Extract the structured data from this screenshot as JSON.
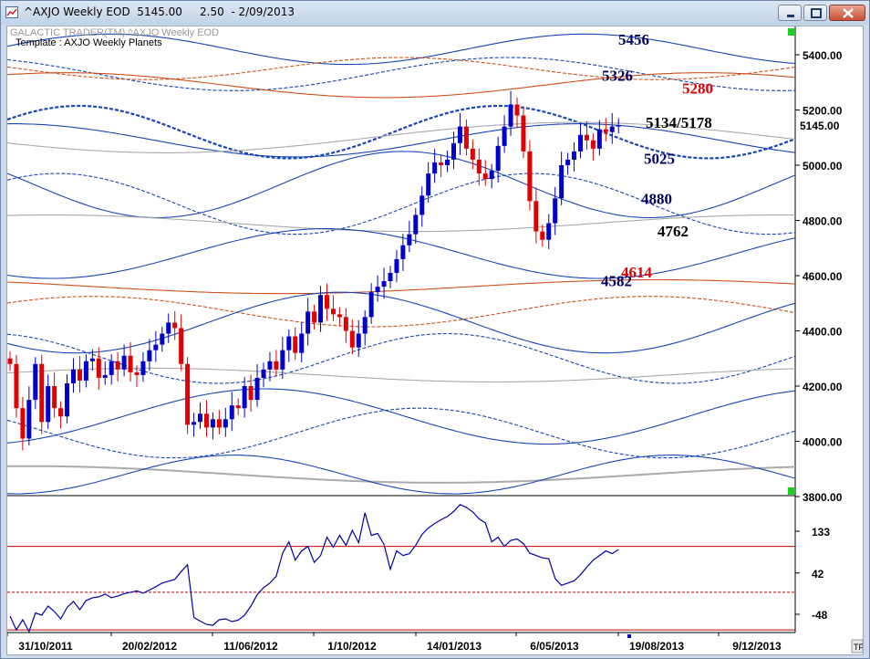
{
  "window": {
    "title": "^AXJO Weekly EOD  5145.00     2.50  - 2/09/2013",
    "chrome_color": "#cfdbea",
    "close_color": "#c74e34"
  },
  "chart": {
    "header_text": "GALACTIC TRADER(TM)     ^AXJO Weekly EOD",
    "template_text": "Template : AXJO Weekly Planets",
    "last_price_label": "5145.00",
    "corner_label": "TF"
  },
  "chart_data": [
    {
      "type": "candlestick",
      "ylim": [
        3800,
        5500
      ],
      "y_ticks": [
        "5400.00",
        "5200.00",
        "5000.00",
        "4800.00",
        "4600.00",
        "4400.00",
        "4200.00",
        "4000.00",
        "3800.00"
      ],
      "y_tick_values": [
        5400,
        5200,
        5000,
        4800,
        4600,
        4400,
        4200,
        4000,
        3800
      ],
      "x_tick_labels": [
        "31/10/2011",
        "20/02/2012",
        "11/06/2012",
        "1/10/2012",
        "14/01/2013",
        "6/05/2013",
        "19/08/2013",
        "9/12/2013"
      ],
      "last_close": 5145.0,
      "level_labels": [
        {
          "text": "5456",
          "value": 5456,
          "color": "#000060"
        },
        {
          "text": "5326",
          "value": 5326,
          "color": "#000060"
        },
        {
          "text": "5280",
          "value": 5280,
          "color": "#e00000"
        },
        {
          "text": "5134/5178",
          "value": 5156,
          "color": "#000000"
        },
        {
          "text": "5025",
          "value": 5025,
          "color": "#000060"
        },
        {
          "text": "4880",
          "value": 4880,
          "color": "#000060"
        },
        {
          "text": "4762",
          "value": 4762,
          "color": "#000000"
        },
        {
          "text": "4614",
          "value": 4614,
          "color": "#e00000"
        },
        {
          "text": "4582",
          "value": 4582,
          "color": "#000060"
        }
      ],
      "closes": [
        4280,
        4120,
        4010,
        4150,
        4280,
        4070,
        4200,
        4120,
        4090,
        4210,
        4260,
        4220,
        4290,
        4300,
        4230,
        4240,
        4290,
        4260,
        4310,
        4250,
        4240,
        4290,
        4330,
        4350,
        4390,
        4430,
        4410,
        4280,
        4060,
        4070,
        4100,
        4050,
        4080,
        4050,
        4080,
        4130,
        4120,
        4200,
        4150,
        4230,
        4260,
        4290,
        4260,
        4330,
        4380,
        4320,
        4390,
        4470,
        4430,
        4530,
        4480,
        4460,
        4450,
        4400,
        4340,
        4390,
        4450,
        4540,
        4560,
        4580,
        4610,
        4660,
        4710,
        4750,
        4820,
        4890,
        4970,
        5010,
        5000,
        5020,
        5080,
        5140,
        5060,
        5020,
        4970,
        4950,
        4980,
        5070,
        5140,
        5220,
        5180,
        5050,
        4870,
        4760,
        4730,
        4790,
        4880,
        5000,
        5020,
        5050,
        5110,
        5090,
        5060,
        5130,
        5120,
        5140,
        5145
      ],
      "up_color": "#0000cc",
      "down_color": "#e00000"
    },
    {
      "type": "line",
      "ylim": [
        -100,
        190
      ],
      "y_ticks": [
        "133",
        "42",
        "-48"
      ],
      "y_tick_values": [
        133,
        42,
        -48
      ],
      "ref_lines": [
        100,
        0,
        -82
      ],
      "line_color": "#0000aa",
      "ref_color": "#cc0000",
      "values": [
        -52,
        -82,
        -60,
        -88,
        -45,
        -50,
        -30,
        -42,
        -58,
        -33,
        -20,
        -38,
        -18,
        -12,
        -10,
        -4,
        -12,
        -8,
        -3,
        0,
        3,
        -2,
        5,
        12,
        20,
        24,
        28,
        45,
        60,
        -55,
        -63,
        -70,
        -72,
        -60,
        -58,
        -64,
        -61,
        -50,
        -30,
        -5,
        10,
        20,
        35,
        85,
        110,
        70,
        90,
        100,
        65,
        80,
        120,
        98,
        124,
        102,
        135,
        108,
        173,
        124,
        128,
        104,
        50,
        90,
        80,
        84,
        102,
        126,
        140,
        150,
        158,
        165,
        176,
        191,
        185,
        175,
        160,
        151,
        110,
        120,
        100,
        113,
        116,
        106,
        85,
        80,
        75,
        73,
        30,
        15,
        20,
        25,
        38,
        55,
        70,
        80,
        90,
        84,
        93
      ]
    }
  ]
}
